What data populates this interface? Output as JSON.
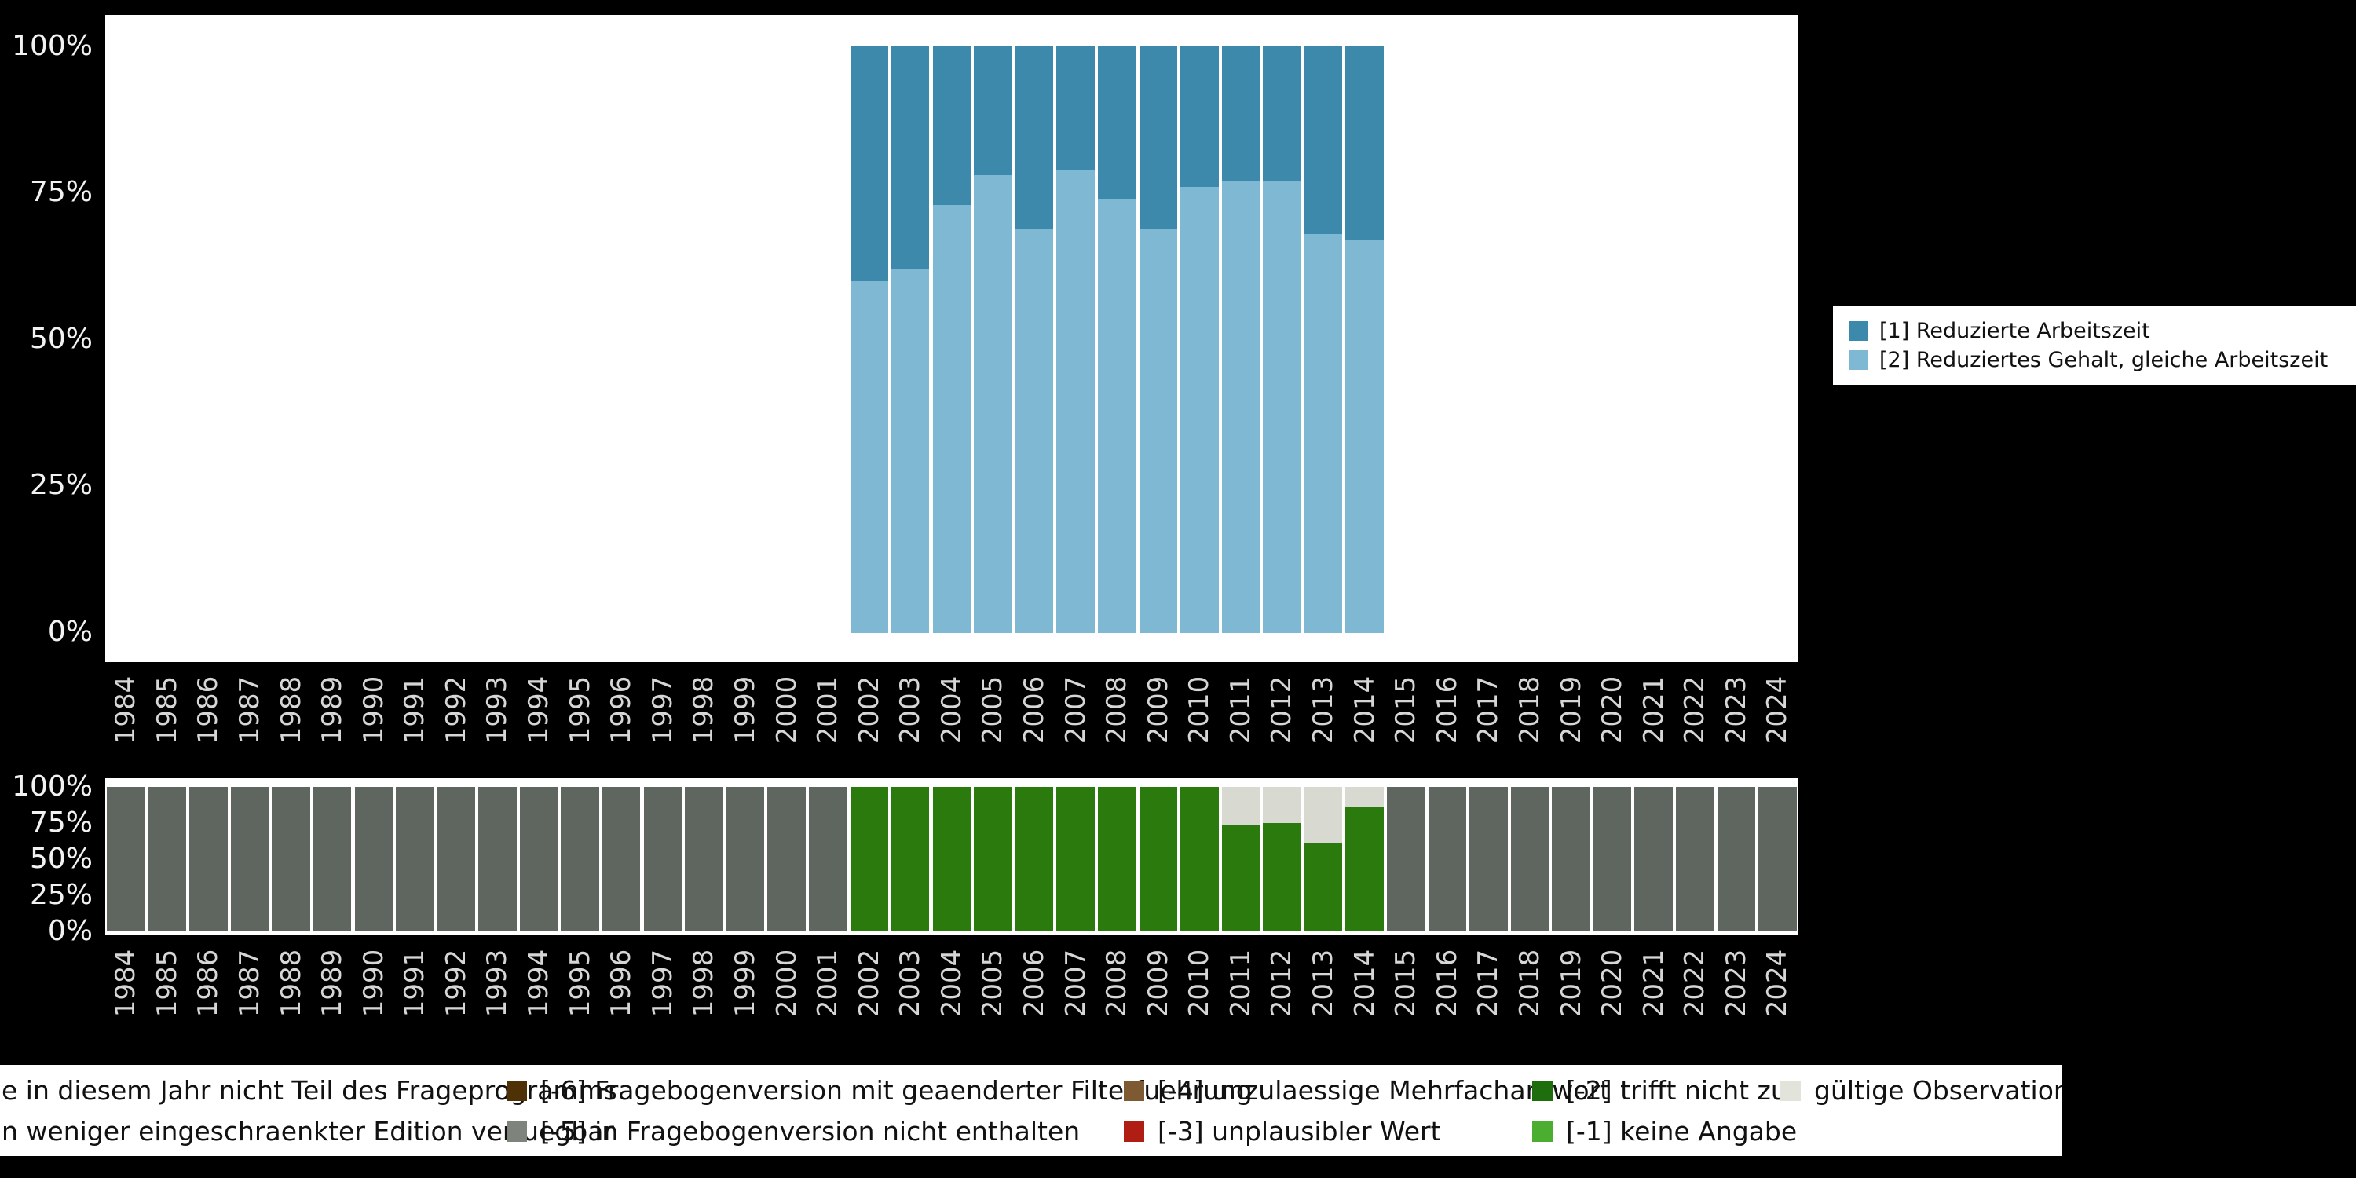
{
  "axes": {
    "ytick_labels": [
      "100%",
      "75%",
      "50%",
      "25%",
      "0%"
    ]
  },
  "chart_data": [
    {
      "type": "bar",
      "stacked": true,
      "normalized": "percent",
      "title": "",
      "xlabel": "",
      "ylabel": "",
      "ylim": [
        0,
        100
      ],
      "grid": false,
      "legend_position": "right",
      "categories": [
        "1984",
        "1985",
        "1986",
        "1987",
        "1988",
        "1989",
        "1990",
        "1991",
        "1992",
        "1993",
        "1994",
        "1995",
        "1996",
        "1997",
        "1998",
        "1999",
        "2000",
        "2001",
        "2002",
        "2003",
        "2004",
        "2005",
        "2006",
        "2007",
        "2008",
        "2009",
        "2010",
        "2011",
        "2012",
        "2013",
        "2014",
        "2015",
        "2016",
        "2017",
        "2018",
        "2019",
        "2020",
        "2021",
        "2022",
        "2023",
        "2024"
      ],
      "series": [
        {
          "name": "[2] Reduziertes Gehalt, gleiche Arbeitszeit",
          "color": "#7fb8d3",
          "values": [
            0,
            0,
            0,
            0,
            0,
            0,
            0,
            0,
            0,
            0,
            0,
            0,
            0,
            0,
            0,
            0,
            0,
            0,
            60,
            62,
            73,
            78,
            69,
            79,
            74,
            69,
            76,
            77,
            77,
            68,
            67,
            0,
            0,
            0,
            0,
            0,
            0,
            0,
            0,
            0,
            0
          ]
        },
        {
          "name": "[1] Reduzierte Arbeitszeit",
          "color": "#3d89ab",
          "values": [
            0,
            0,
            0,
            0,
            0,
            0,
            0,
            0,
            0,
            0,
            0,
            0,
            0,
            0,
            0,
            0,
            0,
            0,
            40,
            38,
            27,
            22,
            31,
            21,
            26,
            31,
            24,
            23,
            23,
            32,
            33,
            0,
            0,
            0,
            0,
            0,
            0,
            0,
            0,
            0,
            0
          ]
        }
      ]
    },
    {
      "type": "bar",
      "stacked": true,
      "normalized": "percent",
      "title": "",
      "xlabel": "",
      "ylabel": "",
      "ylim": [
        0,
        100
      ],
      "grid": false,
      "legend_position": "bottom",
      "categories": [
        "1984",
        "1985",
        "1986",
        "1987",
        "1988",
        "1989",
        "1990",
        "1991",
        "1992",
        "1993",
        "1994",
        "1995",
        "1996",
        "1997",
        "1998",
        "1999",
        "2000",
        "2001",
        "2002",
        "2003",
        "2004",
        "2005",
        "2006",
        "2007",
        "2008",
        "2009",
        "2010",
        "2011",
        "2012",
        "2013",
        "2014",
        "2015",
        "2016",
        "2017",
        "2018",
        "2019",
        "2020",
        "2021",
        "2022",
        "2023",
        "2024"
      ],
      "series": [
        {
          "name": "[-5] in Fragebogenversion nicht enthalten",
          "color": "#5f665f",
          "values": [
            100,
            100,
            100,
            100,
            100,
            100,
            100,
            100,
            100,
            100,
            100,
            100,
            100,
            100,
            100,
            100,
            100,
            100,
            0,
            0,
            0,
            0,
            0,
            0,
            0,
            0,
            0,
            0,
            0,
            0,
            0,
            100,
            100,
            100,
            100,
            100,
            100,
            100,
            100,
            100,
            100
          ]
        },
        {
          "name": "[-2] trifft nicht zu",
          "color": "#2b7a0e",
          "values": [
            0,
            0,
            0,
            0,
            0,
            0,
            0,
            0,
            0,
            0,
            0,
            0,
            0,
            0,
            0,
            0,
            0,
            0,
            100,
            100,
            100,
            100,
            100,
            100,
            100,
            100,
            100,
            74,
            75,
            61,
            86,
            0,
            0,
            0,
            0,
            0,
            0,
            0,
            0,
            0,
            0
          ]
        },
        {
          "name": "gültige Observationen",
          "color": "#d8dad1",
          "values": [
            0,
            0,
            0,
            0,
            0,
            0,
            0,
            0,
            0,
            0,
            0,
            0,
            0,
            0,
            0,
            0,
            0,
            0,
            0,
            0,
            0,
            0,
            0,
            0,
            0,
            0,
            0,
            26,
            25,
            39,
            14,
            0,
            0,
            0,
            0,
            0,
            0,
            0,
            0,
            0,
            0
          ]
        }
      ]
    }
  ],
  "legend_top": {
    "items": [
      {
        "label": "[1] Reduzierte Arbeitszeit",
        "color": "#3d89ab"
      },
      {
        "label": "[2] Reduziertes Gehalt, gleiche Arbeitszeit",
        "color": "#7fb8d3"
      }
    ]
  },
  "legend_bottom": {
    "rows": [
      [
        {
          "label": "e in diesem Jahr nicht Teil des Frageprogramms",
          "color": null,
          "col": 0
        },
        {
          "label": "[-6] Fragebogenversion mit geaenderter Filterfuehrung",
          "color": "#4f3108",
          "col": 1
        },
        {
          "label": "[-4] unzulaessige Mehrfachantwort",
          "color": "#7d5a32",
          "col": 2
        },
        {
          "label": "[-2] trifft nicht zu",
          "color": "#1f6e0e",
          "col": 3
        },
        {
          "label": "gültige Observationen",
          "color": "#e2e3da",
          "col": 4
        }
      ],
      [
        {
          "label": "n weniger eingeschraenkter Edition verfuegbar",
          "color": null,
          "col": 0
        },
        {
          "label": "[-5] in Fragebogenversion nicht enthalten",
          "color": "#7e847c",
          "col": 1
        },
        {
          "label": "[-3] unplausibler Wert",
          "color": "#b01d12",
          "col": 2
        },
        {
          "label": "[-1] keine Angabe",
          "color": "#4cae30",
          "col": 3
        }
      ]
    ]
  }
}
